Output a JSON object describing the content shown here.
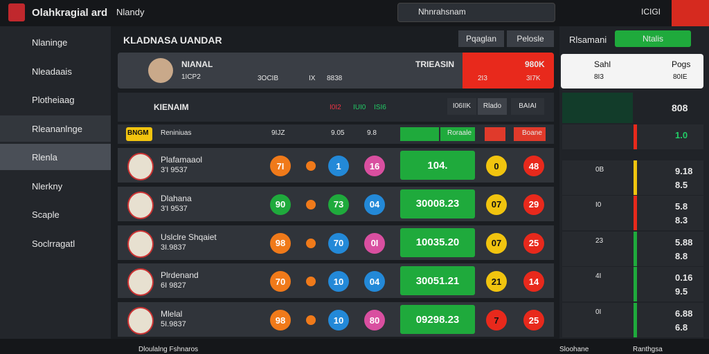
{
  "header": {
    "brand": "Olahkragial ard",
    "nav": "Nlandy",
    "search": "Nhnrahsnam",
    "user": "ICIGI"
  },
  "sidebar": [
    "Nlaninge",
    "Nleadaais",
    "Plotheiaag",
    "Rleananlnge",
    "Rlenla",
    "Nlerkny",
    "Scaple",
    "Soclrragatl"
  ],
  "main": {
    "title": "KLADNASA UANDAR",
    "buttons": [
      "Pqaglan",
      "Pelosle"
    ],
    "player": {
      "name": "NIANAL",
      "sub": "1ICP2",
      "stats": [
        "3OCIB",
        "IX",
        "8838"
      ],
      "promo": "TRIEASIN",
      "promo_value": "980K",
      "promo_stats": [
        "2I3",
        "3I7K"
      ]
    },
    "table": {
      "team": "KIENAIM",
      "icons": [
        "I0I2",
        "IUI0",
        "ISI6"
      ],
      "filters": [
        "I06IIK",
        "Rlado",
        "BAIAI"
      ],
      "subheader": [
        "BNGM",
        "Reniniuas",
        "9IJZ",
        "9.05",
        "9.8",
        "Roraale",
        "Boane"
      ],
      "rows": [
        {
          "name": "Plafamaaol",
          "code": "3'I 9537",
          "a": "7I",
          "b": "1",
          "c": "16",
          "score": "104.",
          "d": "0",
          "e": "48"
        },
        {
          "name": "Dlahana",
          "code": "3'I 9537",
          "a": "90",
          "b": "73",
          "c": "04",
          "score": "30008.23",
          "d": "07",
          "e": "29"
        },
        {
          "name": "Uslclre Shqaiet",
          "code": "3I.9837",
          "a": "98",
          "b": "70",
          "c": "0I",
          "score": "10035.20",
          "d": "07",
          "e": "25"
        },
        {
          "name": "Plrdenand",
          "code": "6I 9827",
          "a": "70",
          "b": "10",
          "c": "04",
          "score": "30051.21",
          "d": "21",
          "e": "14"
        },
        {
          "name": "Mlelal",
          "code": "5I.9837",
          "a": "98",
          "b": "10",
          "c": "80",
          "score": "09298.23",
          "d": "7",
          "e": "25"
        }
      ]
    }
  },
  "right": {
    "title": "Rlsamani",
    "button": "Ntalis",
    "cards": [
      {
        "name": "Sahl",
        "value": "8I3"
      },
      {
        "name": "Pogs",
        "value": "80IE"
      }
    ],
    "header_value": "808",
    "rows": [
      {
        "small": "",
        "top": "1.0",
        "bottom": ""
      },
      {
        "small": "0B",
        "top": "9.18",
        "bottom": "8.5"
      },
      {
        "small": "I0",
        "top": "5.8",
        "bottom": "8.3"
      },
      {
        "small": "23",
        "top": "5.88",
        "bottom": "8.8"
      },
      {
        "small": "4I",
        "top": "0.16",
        "bottom": "9.5"
      },
      {
        "small": "0I",
        "top": "6.88",
        "bottom": "6.8"
      }
    ]
  },
  "footer": {
    "left": "Dloulalng Fshnaros",
    "mid": "Sloohane",
    "right": "Ranthgsa"
  }
}
